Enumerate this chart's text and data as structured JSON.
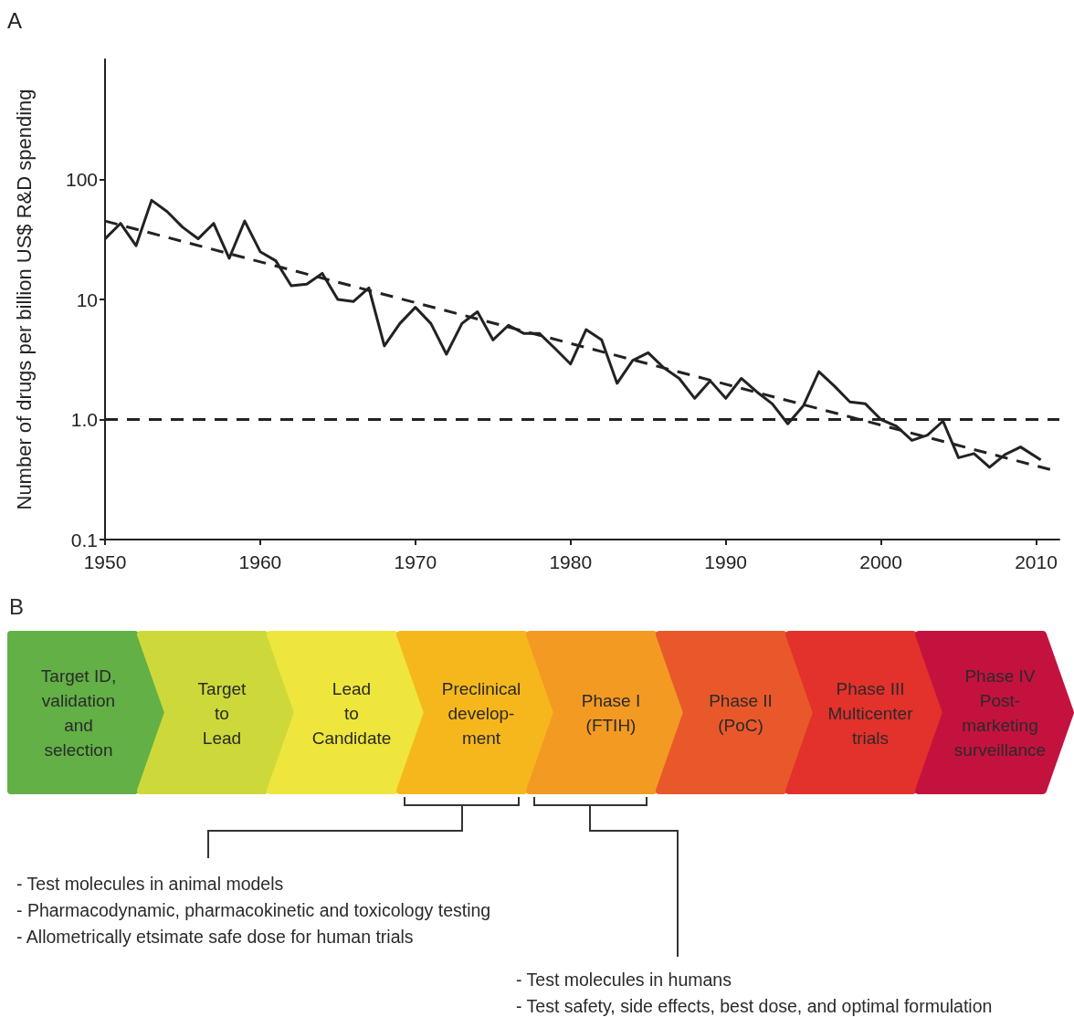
{
  "chart_data": [
    {
      "type": "line",
      "ylabel": "Number of drugs per billion US$ R&D spending",
      "annotations": [
        "A"
      ],
      "log": true,
      "xlim": [
        1950,
        2011.5
      ],
      "xticks": [
        1950,
        1960,
        1970,
        1980,
        1990,
        2000,
        2010
      ],
      "ylim": [
        0.1,
        1000
      ],
      "yticks": [
        0.1,
        {
          "value": 1,
          "label": "1.0"
        },
        10,
        100
      ],
      "ref_lines": [
        {
          "axis": "y",
          "value": 1,
          "color": "#222222",
          "line_style": "dashed"
        }
      ],
      "series": [
        {
          "color": "#222222",
          "x": [
            1950,
            1951,
            1952,
            1953,
            1954,
            1955,
            1956,
            1957,
            1958,
            1959,
            1960,
            1961,
            1962,
            1963,
            1964,
            1965,
            1966,
            1967,
            1968,
            1969,
            1970,
            1971,
            1972,
            1973,
            1974,
            1975,
            1976,
            1977,
            1978,
            1979,
            1980,
            1981,
            1982,
            1983,
            1984,
            1985,
            1986,
            1987,
            1988,
            1989,
            1990,
            1991,
            1992,
            1993,
            1994,
            1995,
            1996,
            1997,
            1998,
            1999,
            2000,
            2001,
            2002,
            2003,
            2004,
            2005,
            2006,
            2007,
            2008,
            2009,
            2010.3
          ],
          "values": [
            32,
            43,
            28,
            67,
            54,
            40,
            32,
            43,
            22,
            45,
            25,
            21,
            13,
            13.4,
            16.5,
            10,
            9.6,
            12.5,
            4.1,
            6.3,
            8.6,
            6.3,
            3.5,
            6.3,
            7.9,
            4.6,
            6.1,
            5.2,
            5.2,
            3.9,
            2.9,
            5.6,
            4.6,
            2.0,
            3.1,
            3.6,
            2.7,
            2.2,
            1.5,
            2.1,
            1.5,
            2.2,
            1.7,
            1.35,
            0.92,
            1.3,
            2.5,
            1.9,
            1.4,
            1.35,
            1.0,
            0.88,
            0.67,
            0.74,
            0.97,
            0.48,
            0.52,
            0.4,
            0.51,
            0.59,
            0.46
          ]
        },
        {
          "type": "line",
          "color": "#222222",
          "line_style": "dashed",
          "x": [
            1950,
            2011
          ],
          "values": [
            45,
            0.38
          ]
        }
      ]
    },
    {
      "type": "other",
      "annotations": [
        "B",
        "- Test molecules in animal models\n- Pharmacodynamic, pharmacokinetic and toxicology testing\n- Allometrically etsimate safe dose for human trials",
        "- Test molecules in humans\n- Test safety, side effects, best dose, and optimal formulation"
      ],
      "categories": [
        "Target ID,\nvalidation\nand\nselection",
        "Target\nto\nLead",
        "Lead\nto\nCandidate",
        "Preclinical\ndevelop-\nment",
        "Phase I\n(FTIH)",
        "Phase II\n(PoC)",
        "Phase III\nMulticenter\ntrials",
        "Phase IV\nPost-\nmarketing\nsurveillance"
      ],
      "colors": [
        "#62b046",
        "#cdd93a",
        "#eee63c",
        "#f6b71d",
        "#f39a23",
        "#e9582a",
        "#e3312c",
        "#c4123f"
      ]
    }
  ]
}
